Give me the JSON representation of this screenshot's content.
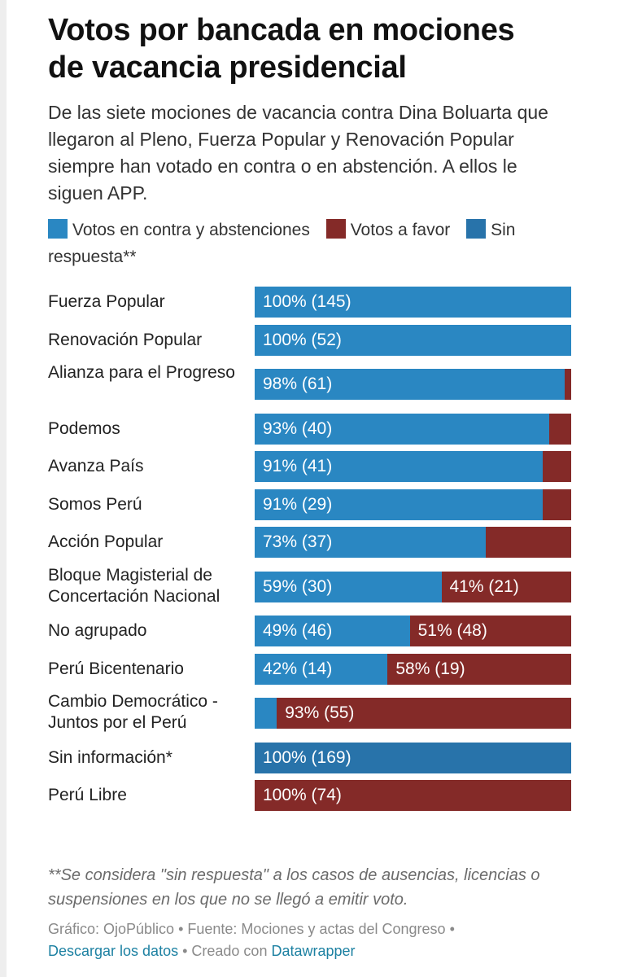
{
  "title_line1": "Votos por bancada en mociones",
  "title_line2": "de vacancia presidencial",
  "subtitle": "De las siete mociones de vacancia contra Dina Boluarta que llegaron al Pleno, Fuerza Popular y Renovación Popular siempre han votado en contra o en abstención. A ellos le siguen APP.",
  "colors": {
    "contra": "#2a87c2",
    "favor": "#842a28",
    "sin": "#2873aa",
    "link": "#1d81a2"
  },
  "chart_data": {
    "type": "bar",
    "orientation": "horizontal",
    "stacked": true,
    "unit": "%",
    "xlim": [
      0,
      100
    ],
    "legend": [
      {
        "key": "contra",
        "label": "Votos en contra y abstenciones"
      },
      {
        "key": "favor",
        "label": "Votos a favor"
      },
      {
        "key": "sin",
        "label": "Sin respuesta**"
      }
    ],
    "rows": [
      {
        "label": "Fuerza Popular",
        "segments": [
          {
            "key": "contra",
            "value": 100,
            "text": "100% (145)"
          }
        ]
      },
      {
        "label": "Renovación Popular",
        "segments": [
          {
            "key": "contra",
            "value": 100,
            "text": "100% (52)"
          }
        ]
      },
      {
        "label": "Alianza para el Progreso",
        "segments": [
          {
            "key": "contra",
            "value": 98,
            "text": "98% (61)"
          },
          {
            "key": "favor",
            "value": 2,
            "text": ""
          }
        ]
      },
      {
        "label": "Podemos",
        "segments": [
          {
            "key": "contra",
            "value": 93,
            "text": "93% (40)"
          },
          {
            "key": "favor",
            "value": 7,
            "text": ""
          }
        ]
      },
      {
        "label": "Avanza País",
        "segments": [
          {
            "key": "contra",
            "value": 91,
            "text": "91% (41)"
          },
          {
            "key": "favor",
            "value": 9,
            "text": ""
          }
        ]
      },
      {
        "label": "Somos Perú",
        "segments": [
          {
            "key": "contra",
            "value": 91,
            "text": "91% (29)"
          },
          {
            "key": "favor",
            "value": 9,
            "text": ""
          }
        ]
      },
      {
        "label": "Acción Popular",
        "segments": [
          {
            "key": "contra",
            "value": 73,
            "text": "73% (37)"
          },
          {
            "key": "favor",
            "value": 27,
            "text": ""
          }
        ]
      },
      {
        "label": "Bloque Magisterial de Concertación Nacional",
        "segments": [
          {
            "key": "contra",
            "value": 59,
            "text": "59% (30)"
          },
          {
            "key": "favor",
            "value": 41,
            "text": "41% (21)"
          }
        ]
      },
      {
        "label": "No agrupado",
        "segments": [
          {
            "key": "contra",
            "value": 49,
            "text": "49% (46)"
          },
          {
            "key": "favor",
            "value": 51,
            "text": "51% (48)"
          }
        ]
      },
      {
        "label": "Perú Bicentenario",
        "segments": [
          {
            "key": "contra",
            "value": 42,
            "text": "42% (14)"
          },
          {
            "key": "favor",
            "value": 58,
            "text": "58% (19)"
          }
        ]
      },
      {
        "label": "Cambio Democrático - Juntos por el Perú",
        "segments": [
          {
            "key": "contra",
            "value": 7,
            "text": ""
          },
          {
            "key": "favor",
            "value": 93,
            "text": "93% (55)"
          }
        ]
      },
      {
        "label": "Sin información*",
        "segments": [
          {
            "key": "sin",
            "value": 100,
            "text": "100% (169)"
          }
        ]
      },
      {
        "label": "Perú Libre",
        "segments": [
          {
            "key": "favor",
            "value": 100,
            "text": "100% (74)"
          }
        ]
      }
    ]
  },
  "note": "**Se considera \"sin respuesta\" a los casos de ausencias, licencias o suspensiones en los que no se llegó a emitir voto.",
  "footer": {
    "grafico": "Gráfico: OjoPúblico",
    "sep": " • ",
    "fuente": "Fuente: Mociones y actas del Congreso",
    "download": "Descargar los datos",
    "created": "Creado con",
    "tool": "Datawrapper"
  }
}
